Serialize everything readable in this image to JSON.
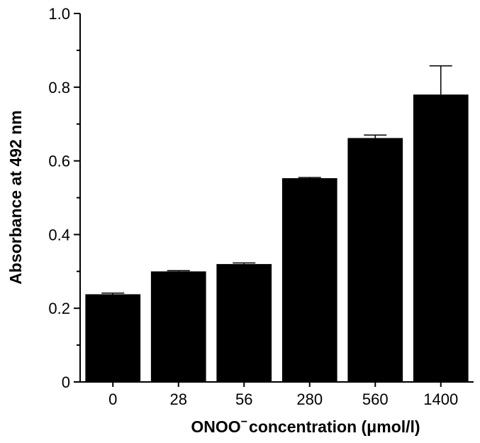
{
  "chart_data": {
    "type": "bar",
    "title": "",
    "xlabel": "ONOO⁻ concentration (μmol/l)",
    "xlabel_main": "ONOO",
    "xlabel_sup": "−",
    "xlabel_rest": "concentration (μmol/l)",
    "ylabel": "Absorbance at 492 nm",
    "ylim": [
      0,
      1.0
    ],
    "yticks": [
      0,
      0.2,
      0.4,
      0.6,
      0.8,
      1.0
    ],
    "ytick_labels": [
      "0",
      "0.2",
      "0.4",
      "0.6",
      "0.8",
      "1.0"
    ],
    "categories": [
      "0",
      "28",
      "56",
      "280",
      "560",
      "1400"
    ],
    "values": [
      0.238,
      0.3,
      0.32,
      0.553,
      0.662,
      0.78
    ],
    "errors": [
      0.003,
      0.002,
      0.003,
      0.002,
      0.008,
      0.078
    ],
    "bar_color": "#000000",
    "grid": false,
    "legend": "none"
  }
}
